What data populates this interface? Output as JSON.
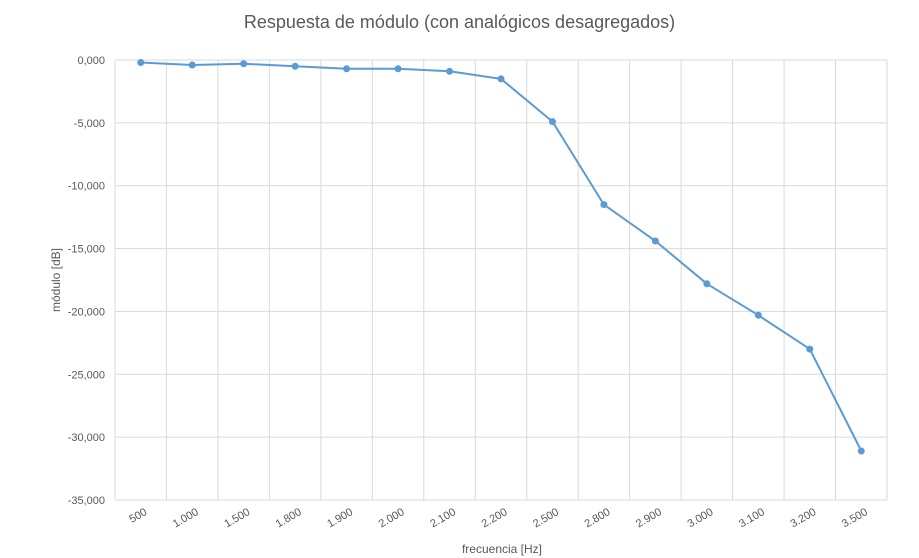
{
  "chart_data": {
    "type": "line",
    "title": "Respuesta de módulo (con analógicos desagregados)",
    "xlabel": "frecuencia [Hz]",
    "ylabel": "módulo [dB]",
    "categories": [
      "500",
      "1.000",
      "1.500",
      "1.800",
      "1.900",
      "2.000",
      "2.100",
      "2.200",
      "2.500",
      "2.800",
      "2.900",
      "3.000",
      "3.100",
      "3.200",
      "3.500"
    ],
    "y_ticks": [
      "0,000",
      "-5,000",
      "-10,000",
      "-15,000",
      "-20,000",
      "-25,000",
      "-30,000",
      "-35,000"
    ],
    "ylim": [
      -35,
      0
    ],
    "series": [
      {
        "values": [
          -0.2,
          -0.4,
          -0.3,
          -0.5,
          -0.7,
          -0.7,
          -0.9,
          -1.5,
          -4.9,
          -11.5,
          -14.4,
          -17.8,
          -20.3,
          -23.0,
          -31.1
        ]
      }
    ],
    "grid": true,
    "color": "#5b9bd5"
  }
}
